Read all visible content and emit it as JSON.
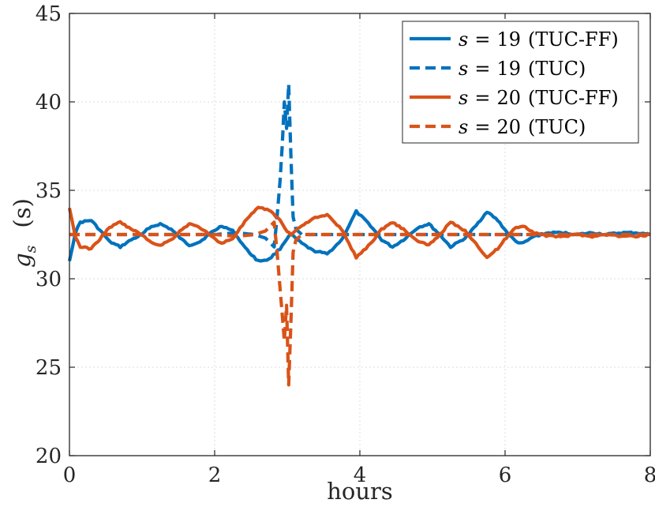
{
  "chart_data": {
    "type": "line",
    "title": "",
    "xlabel": "hours",
    "ylabel": "g_s (s)",
    "ylabel_symbol": "g",
    "ylabel_subscript": "s",
    "ylabel_unit": "(s)",
    "xlim": [
      0,
      8
    ],
    "ylim": [
      20,
      45
    ],
    "xticks": [
      0,
      2,
      4,
      6,
      8
    ],
    "yticks": [
      20,
      25,
      30,
      35,
      40,
      45
    ],
    "xtick_labels": [
      "0",
      "2",
      "4",
      "6",
      "8"
    ],
    "ytick_labels": [
      "20",
      "25",
      "30",
      "35",
      "40",
      "45"
    ],
    "grid": true,
    "legend_location": "top-right",
    "series": [
      {
        "name": "s = 19 (TUC-FF)",
        "legend_var": "s",
        "legend_value": "19",
        "legend_suffix": "(TUC-FF)",
        "color": "#0072BD",
        "style": "solid",
        "x": [
          0,
          0.08,
          0.15,
          0.3,
          0.45,
          0.55,
          0.7,
          0.85,
          1.0,
          1.1,
          1.25,
          1.4,
          1.55,
          1.65,
          1.8,
          1.95,
          2.1,
          2.25,
          2.45,
          2.6,
          2.75,
          2.9,
          3.0,
          3.05,
          3.2,
          3.35,
          3.55,
          3.75,
          3.95,
          4.15,
          4.3,
          4.45,
          4.6,
          4.8,
          4.95,
          5.1,
          5.25,
          5.45,
          5.6,
          5.75,
          5.9,
          6.05,
          6.15,
          6.25,
          6.4,
          6.6,
          6.8,
          7.0,
          7.2,
          7.4,
          7.6,
          7.8,
          8.0
        ],
        "y": [
          31.0,
          32.6,
          33.2,
          33.3,
          32.6,
          32.1,
          31.8,
          32.2,
          32.5,
          32.9,
          33.1,
          32.8,
          32.2,
          31.9,
          32.1,
          32.6,
          33.0,
          32.7,
          31.6,
          31.0,
          31.1,
          31.7,
          32.3,
          32.5,
          32.0,
          31.6,
          31.4,
          32.2,
          33.8,
          33.0,
          32.2,
          31.8,
          32.2,
          32.9,
          33.1,
          32.5,
          31.8,
          32.3,
          33.0,
          33.8,
          33.3,
          32.5,
          32.1,
          32.0,
          32.4,
          32.6,
          32.6,
          32.5,
          32.6,
          32.5,
          32.6,
          32.6,
          32.5
        ]
      },
      {
        "name": "s = 19 (TUC)",
        "legend_var": "s",
        "legend_value": "19",
        "legend_suffix": "(TUC)",
        "color": "#0072BD",
        "style": "dashed",
        "x": [
          0,
          0.5,
          1.0,
          1.5,
          2.0,
          2.3,
          2.55,
          2.7,
          2.82,
          2.86,
          2.9,
          2.93,
          2.96,
          2.99,
          3.02,
          3.05,
          3.08,
          3.12,
          3.2,
          3.5,
          4.0,
          5.0,
          6.0,
          7.0,
          8.0
        ],
        "y": [
          32.5,
          32.5,
          32.5,
          32.5,
          32.5,
          32.6,
          32.5,
          32.3,
          31.8,
          33.5,
          35.5,
          37.5,
          40.0,
          38.5,
          41.0,
          37.0,
          33.5,
          32.8,
          32.5,
          32.5,
          32.5,
          32.5,
          32.5,
          32.5,
          32.5
        ]
      },
      {
        "name": "s = 20 (TUC-FF)",
        "legend_var": "s",
        "legend_value": "20",
        "legend_suffix": "(TUC-FF)",
        "color": "#D95319",
        "style": "solid",
        "x": [
          0,
          0.08,
          0.15,
          0.3,
          0.45,
          0.55,
          0.7,
          0.85,
          1.0,
          1.1,
          1.25,
          1.4,
          1.55,
          1.65,
          1.8,
          1.95,
          2.1,
          2.25,
          2.45,
          2.6,
          2.75,
          2.9,
          3.0,
          3.05,
          3.2,
          3.35,
          3.55,
          3.75,
          3.95,
          4.15,
          4.3,
          4.45,
          4.6,
          4.8,
          4.95,
          5.1,
          5.25,
          5.45,
          5.6,
          5.75,
          5.9,
          6.05,
          6.15,
          6.25,
          6.4,
          6.6,
          6.8,
          7.0,
          7.2,
          7.4,
          7.6,
          7.8,
          8.0
        ],
        "y": [
          34.0,
          32.4,
          31.8,
          31.7,
          32.4,
          32.9,
          33.2,
          32.8,
          32.5,
          32.1,
          31.9,
          32.2,
          32.8,
          33.1,
          32.9,
          32.4,
          32.0,
          32.3,
          33.4,
          34.0,
          33.9,
          33.3,
          32.7,
          32.5,
          33.0,
          33.4,
          33.6,
          32.8,
          31.2,
          32.0,
          32.8,
          33.2,
          32.8,
          32.1,
          31.9,
          32.5,
          33.2,
          32.7,
          32.0,
          31.2,
          31.7,
          32.5,
          32.9,
          33.0,
          32.6,
          32.4,
          32.4,
          32.5,
          32.4,
          32.5,
          32.4,
          32.4,
          32.5
        ]
      },
      {
        "name": "s = 20 (TUC)",
        "legend_var": "s",
        "legend_value": "20",
        "legend_suffix": "(TUC)",
        "color": "#D95319",
        "style": "dashed",
        "x": [
          0,
          0.5,
          1.0,
          1.5,
          2.0,
          2.3,
          2.55,
          2.7,
          2.82,
          2.86,
          2.9,
          2.93,
          2.96,
          2.99,
          3.02,
          3.05,
          3.08,
          3.12,
          3.2,
          3.5,
          4.0,
          5.0,
          6.0,
          7.0,
          8.0
        ],
        "y": [
          32.5,
          32.5,
          32.5,
          32.5,
          32.5,
          32.4,
          32.5,
          32.7,
          33.2,
          31.5,
          29.5,
          28.0,
          26.5,
          28.5,
          24.0,
          27.5,
          31.5,
          32.2,
          32.5,
          32.5,
          32.5,
          32.5,
          32.5,
          32.5,
          32.5
        ]
      }
    ]
  }
}
